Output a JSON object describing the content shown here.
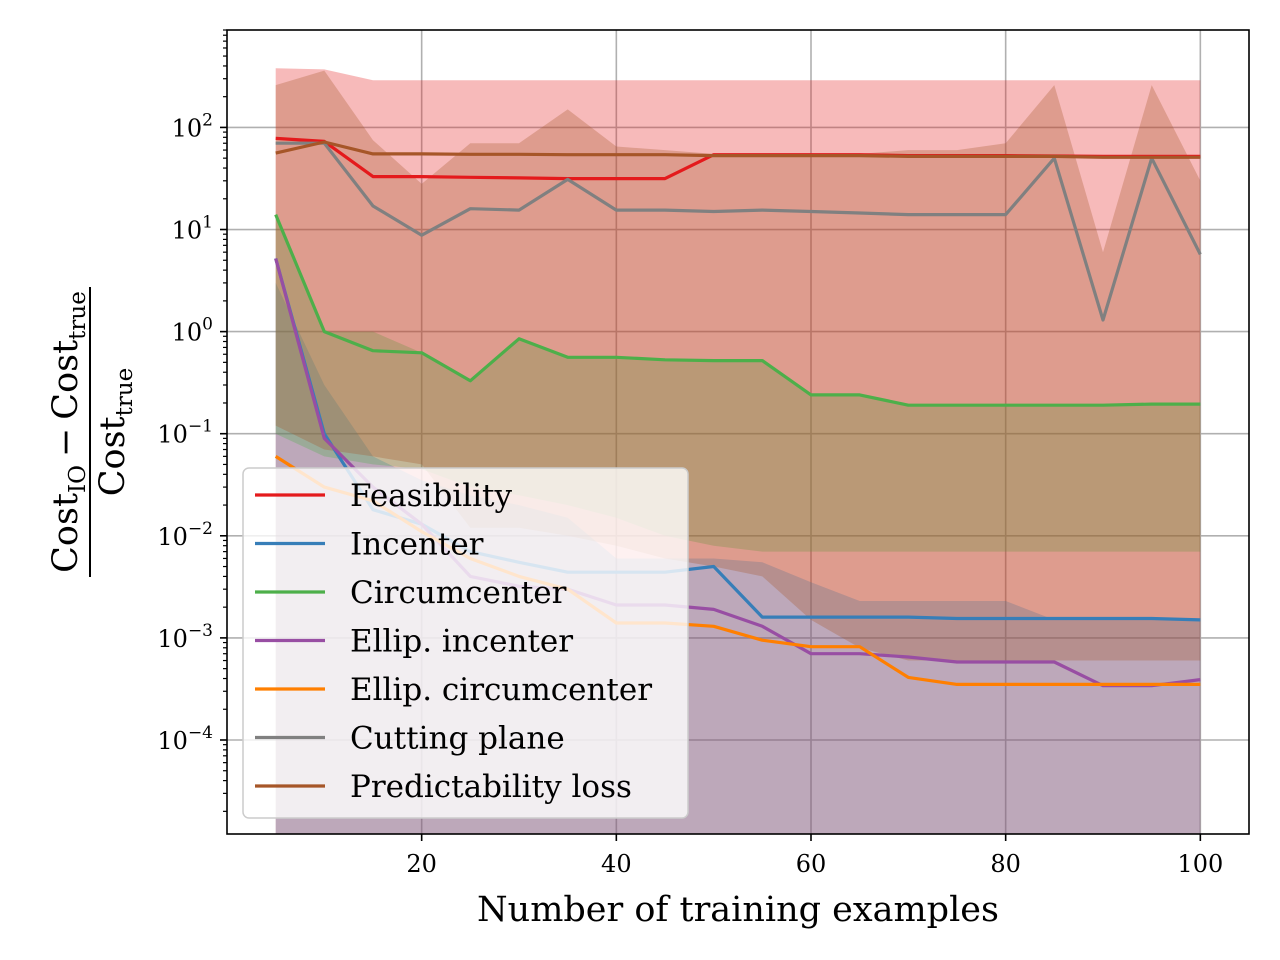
{
  "chart_data": {
    "type": "line",
    "xlabel": "Number of training examples",
    "ylabel": {
      "numerator": {
        "cost_left": "Cost",
        "sub_left": "IO",
        "minus": "−",
        "cost_right": "Cost",
        "sub_right": "true"
      },
      "denominator": {
        "cost": "Cost",
        "sub": "true"
      }
    },
    "yscale": "log",
    "xlim": [
      0,
      105
    ],
    "ylim": [
      1.2e-05,
      900
    ],
    "grid": true,
    "x_ticks": [
      {
        "value": 20,
        "label": "20"
      },
      {
        "value": 40,
        "label": "40"
      },
      {
        "value": 60,
        "label": "60"
      },
      {
        "value": 80,
        "label": "80"
      },
      {
        "value": 100,
        "label": "100"
      }
    ],
    "y_ticks": [
      {
        "value": 100,
        "base": "10",
        "exp": "2"
      },
      {
        "value": 10,
        "base": "10",
        "exp": "1"
      },
      {
        "value": 1,
        "base": "10",
        "exp": "0"
      },
      {
        "value": 0.1,
        "base": "10",
        "exp": "−1"
      },
      {
        "value": 0.01,
        "base": "10",
        "exp": "−2"
      },
      {
        "value": 0.001,
        "base": "10",
        "exp": "−3"
      },
      {
        "value": 0.0001,
        "base": "10",
        "exp": "−4"
      }
    ],
    "legend_position": "lower-left",
    "x": [
      5,
      10,
      15,
      20,
      25,
      30,
      35,
      40,
      45,
      50,
      55,
      60,
      65,
      70,
      75,
      80,
      85,
      90,
      95,
      100
    ],
    "series": [
      {
        "name": "Feasibility",
        "color": "#e41a1c",
        "values": [
          78,
          73,
          33,
          33,
          32.5,
          32,
          31.5,
          31.5,
          31.5,
          54,
          54,
          54,
          54,
          53,
          53,
          53,
          52.5,
          52,
          52,
          52
        ],
        "upper": [
          380,
          370,
          290,
          290,
          290,
          290,
          290,
          290,
          290,
          290,
          290,
          290,
          290,
          290,
          290,
          290,
          290,
          290,
          290,
          290
        ],
        "lower": [
          1e-06,
          1e-06,
          1e-06,
          1e-06,
          1e-06,
          1e-06,
          1e-06,
          1e-06,
          1e-06,
          1e-06,
          1e-06,
          1e-06,
          1e-06,
          1e-06,
          1e-06,
          1e-06,
          1e-06,
          1e-06,
          1e-06,
          1e-06
        ]
      },
      {
        "name": "Incenter",
        "color": "#377eb8",
        "values": [
          5.2,
          0.1,
          0.018,
          0.013,
          0.007,
          0.0055,
          0.0044,
          0.0044,
          0.0044,
          0.005,
          0.0016,
          0.0016,
          0.0016,
          0.0016,
          0.00155,
          0.00155,
          0.00155,
          0.00155,
          0.00155,
          0.0015
        ],
        "upper": [
          3.0,
          0.3,
          0.06,
          0.035,
          0.025,
          0.02,
          0.015,
          0.006,
          0.006,
          0.006,
          0.0055,
          0.0035,
          0.0023,
          0.0023,
          0.0023,
          0.0023,
          0.0015,
          0.0015,
          0.0015,
          0.0015
        ],
        "lower": [
          1e-06,
          1e-06,
          1e-06,
          1e-06,
          1e-06,
          1e-06,
          1e-06,
          1e-06,
          1e-06,
          1e-06,
          1e-06,
          1e-06,
          1e-06,
          1e-06,
          1e-06,
          1e-06,
          1e-06,
          1e-06,
          1e-06,
          1e-06
        ]
      },
      {
        "name": "Circumcenter",
        "color": "#4daf4a",
        "values": [
          14,
          1.0,
          0.65,
          0.62,
          0.33,
          0.85,
          0.56,
          0.56,
          0.53,
          0.52,
          0.52,
          0.24,
          0.24,
          0.19,
          0.19,
          0.19,
          0.19,
          0.19,
          0.195,
          0.195
        ],
        "upper": [
          14,
          1.0,
          1.0,
          0.62,
          0.33,
          0.85,
          0.56,
          0.56,
          0.53,
          0.52,
          0.52,
          0.24,
          0.24,
          0.19,
          0.19,
          0.19,
          0.19,
          0.19,
          0.195,
          0.195
        ],
        "lower": [
          0.1,
          0.06,
          0.05,
          0.045,
          0.03,
          0.025,
          0.02,
          0.015,
          0.01,
          0.008,
          0.007,
          0.007,
          0.007,
          0.007,
          0.007,
          0.007,
          0.007,
          0.007,
          0.007,
          0.007
        ]
      },
      {
        "name": "Ellip. incenter",
        "color": "#984ea3",
        "values": [
          5.2,
          0.09,
          0.03,
          0.013,
          0.004,
          0.0032,
          0.003,
          0.0021,
          0.0021,
          0.0019,
          0.0013,
          0.0007,
          0.0007,
          0.00065,
          0.00058,
          0.00058,
          0.00058,
          0.00034,
          0.00034,
          0.00039
        ],
        "upper": [
          5.2,
          0.09,
          0.03,
          0.013,
          0.004,
          0.0032,
          0.003,
          0.0021,
          0.0021,
          0.0019,
          0.0013,
          0.0007,
          0.0007,
          0.00065,
          0.00058,
          0.00058,
          0.00058,
          0.00034,
          0.00034,
          0.00039
        ],
        "lower": [
          5.2,
          0.09,
          0.03,
          0.013,
          0.004,
          0.0032,
          0.003,
          0.0021,
          0.0021,
          0.0019,
          0.0013,
          0.0007,
          0.0007,
          0.00065,
          0.00058,
          0.00058,
          0.00058,
          0.00034,
          0.00034,
          0.00039
        ]
      },
      {
        "name": "Ellip. circumcenter",
        "color": "#ff7f00",
        "values": [
          0.06,
          0.03,
          0.022,
          0.011,
          0.006,
          0.004,
          0.003,
          0.0014,
          0.0014,
          0.0013,
          0.00095,
          0.00082,
          0.00082,
          0.00041,
          0.00035,
          0.00035,
          0.00035,
          0.00035,
          0.00035,
          0.00035
        ],
        "upper": [
          0.06,
          0.03,
          0.022,
          0.011,
          0.006,
          0.004,
          0.003,
          0.0014,
          0.0014,
          0.0013,
          0.00095,
          0.00082,
          0.00082,
          0.00041,
          0.00035,
          0.00035,
          0.00035,
          0.00035,
          0.00035,
          0.00035
        ],
        "lower": [
          0.06,
          0.03,
          0.022,
          0.011,
          0.006,
          0.004,
          0.003,
          0.0014,
          0.0014,
          0.0013,
          0.00095,
          0.00082,
          0.00082,
          0.00041,
          0.00035,
          0.00035,
          0.00035,
          0.00035,
          0.00035,
          0.00035
        ]
      },
      {
        "name": "Cutting plane",
        "color": "#808080",
        "values": [
          70,
          70,
          17,
          8.8,
          16,
          15.5,
          31,
          15.5,
          15.5,
          15,
          15.5,
          15,
          14.5,
          14,
          14,
          14,
          50,
          1.3,
          50,
          5.7
        ],
        "upper": [
          70,
          70,
          17,
          8.8,
          16,
          15.5,
          31,
          15.5,
          15.5,
          15,
          15.5,
          15,
          14.5,
          14,
          14,
          14,
          50,
          1.3,
          50,
          5.7
        ],
        "lower": [
          70,
          70,
          17,
          8.8,
          16,
          15.5,
          31,
          15.5,
          15.5,
          15,
          15.5,
          15,
          14.5,
          14,
          14,
          14,
          50,
          1.3,
          50,
          5.7
        ]
      },
      {
        "name": "Predictability loss",
        "color": "#a65628",
        "values": [
          56,
          72,
          55,
          55,
          54.5,
          54.5,
          54,
          54,
          54,
          53,
          53,
          53,
          53,
          52,
          52,
          52,
          52,
          51,
          51,
          51
        ],
        "upper": [
          260,
          360,
          75,
          28,
          70,
          70,
          150,
          65,
          60,
          55,
          55,
          55,
          55,
          60,
          60,
          70,
          260,
          6,
          260,
          30
        ],
        "lower": [
          0.12,
          0.07,
          0.06,
          0.05,
          0.012,
          0.012,
          0.01,
          0.008,
          0.006,
          0.005,
          0.004,
          0.0015,
          0.0008,
          0.0006,
          0.0006,
          0.0006,
          0.0006,
          0.0006,
          0.0006,
          0.0006
        ]
      }
    ]
  }
}
